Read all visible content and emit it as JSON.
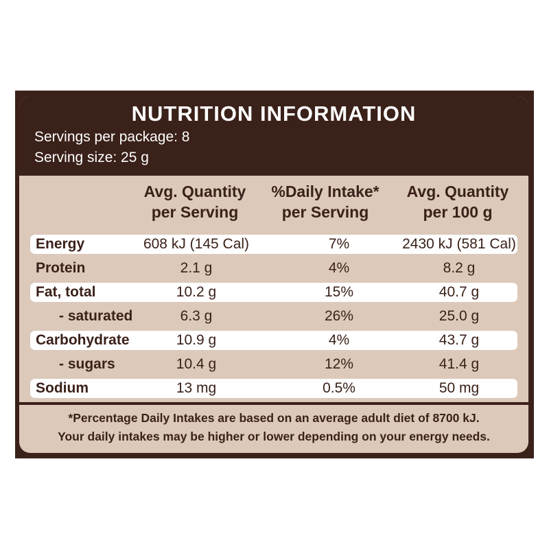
{
  "panel": {
    "title": "NUTRITION INFORMATION",
    "servings_per_package": "Servings per package: 8",
    "serving_size": "Serving size: 25 g"
  },
  "columns": [
    {
      "line1": "Avg. Quantity",
      "line2": "per Serving"
    },
    {
      "line1": "%Daily Intake*",
      "line2": "per Serving"
    },
    {
      "line1": "Avg. Quantity",
      "line2": "per 100 g"
    }
  ],
  "rows": [
    {
      "label": "Energy",
      "per_serving": "608 kJ (145 Cal)",
      "daily_intake": "7%",
      "per_100g": "2430 kJ (581 Cal)"
    },
    {
      "label": "Protein",
      "per_serving": "2.1 g",
      "daily_intake": "4%",
      "per_100g": "8.2 g"
    },
    {
      "label": "Fat, total",
      "per_serving": "10.2 g",
      "daily_intake": "15%",
      "per_100g": "40.7 g"
    },
    {
      "label": "- saturated",
      "per_serving": "6.3 g",
      "daily_intake": "26%",
      "per_100g": "25.0 g"
    },
    {
      "label": "Carbohydrate",
      "per_serving": "10.9 g",
      "daily_intake": "4%",
      "per_100g": "43.7 g"
    },
    {
      "label": "- sugars",
      "per_serving": "10.4 g",
      "daily_intake": "12%",
      "per_100g": "41.4 g"
    },
    {
      "label": "Sodium",
      "per_serving": "13 mg",
      "daily_intake": "0.5%",
      "per_100g": "50 mg"
    }
  ],
  "footnote": {
    "line1": "*Percentage Daily Intakes are based on an average adult diet of 8700 kJ.",
    "line2": "Your daily intakes may be higher or lower depending on your energy needs."
  },
  "colors": {
    "brown": "#3a2119",
    "beige": "#dcc9b9",
    "row_light": "#ffffff"
  }
}
